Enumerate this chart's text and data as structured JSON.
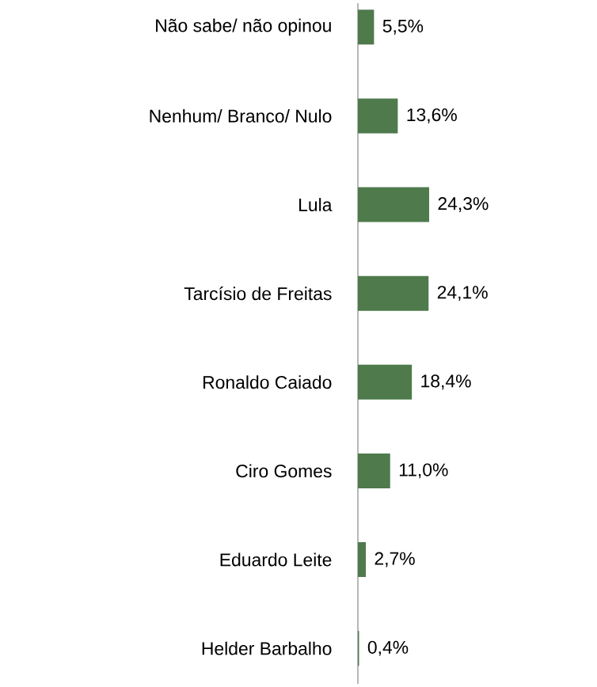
{
  "chart_data": {
    "type": "bar",
    "orientation": "horizontal",
    "categories": [
      "Não sabe/ não opinou",
      "Nenhum/ Branco/ Nulo",
      "Lula",
      "Tarcísio de Freitas",
      "Ronaldo Caiado",
      "Ciro Gomes",
      "Eduardo Leite",
      "Helder Barbalho"
    ],
    "values": [
      5.5,
      13.6,
      24.3,
      24.1,
      18.4,
      11.0,
      2.7,
      0.4
    ],
    "value_labels": [
      "5,5%",
      "13,6%",
      "24,3%",
      "24,1%",
      "18,4%",
      "11,0%",
      "2,7%",
      "0,4%"
    ],
    "color": "#4e7a4c"
  }
}
